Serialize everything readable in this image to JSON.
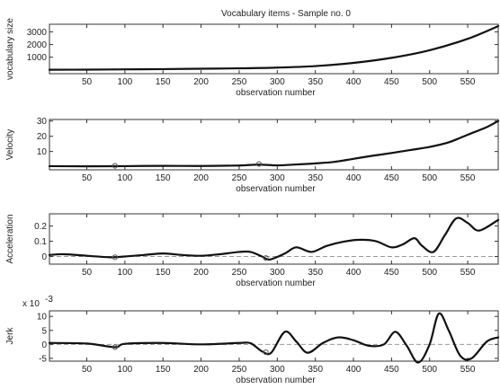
{
  "figure_title": "Vocabulary items - Sample no. 0",
  "colors": {
    "line": "#111111",
    "axes": "#333333",
    "zero_line": "#999999",
    "marker": "#555555"
  },
  "chart_data": [
    {
      "type": "line",
      "title": "Vocabulary items - Sample no. 0",
      "xlabel": "observation number",
      "ylabel": "vocabulary size",
      "xlim": [
        1,
        590
      ],
      "ylim": [
        -300,
        3600
      ],
      "xticks": [
        "50",
        "100",
        "150",
        "200",
        "250",
        "300",
        "350",
        "400",
        "450",
        "500",
        "550"
      ],
      "yticks": [
        "1000",
        "2000",
        "3000"
      ],
      "exponent": "",
      "zero_line": false,
      "grid": false,
      "series": [
        {
          "x": [
            1,
            50,
            100,
            150,
            200,
            250,
            300,
            350,
            400,
            450,
            500,
            550,
            590
          ],
          "y": [
            10,
            20,
            40,
            60,
            90,
            120,
            180,
            300,
            550,
            950,
            1550,
            2450,
            3450
          ]
        }
      ],
      "markers": []
    },
    {
      "type": "line",
      "title": "",
      "xlabel": "observation number",
      "ylabel": "Velocity",
      "xlim": [
        1,
        590
      ],
      "ylim": [
        -2,
        31
      ],
      "xticks": [
        "50",
        "100",
        "150",
        "200",
        "250",
        "300",
        "350",
        "400",
        "450",
        "500",
        "550"
      ],
      "yticks": [
        "10",
        "20",
        "30"
      ],
      "exponent": "",
      "zero_line": false,
      "grid": false,
      "series": [
        {
          "x": [
            1,
            50,
            100,
            150,
            200,
            250,
            275,
            300,
            325,
            350,
            375,
            400,
            425,
            450,
            475,
            500,
            525,
            550,
            575,
            590
          ],
          "y": [
            0.4,
            0.3,
            0.4,
            0.6,
            0.5,
            0.8,
            1.4,
            0.9,
            1.5,
            2.2,
            3.2,
            5.2,
            7.2,
            9.0,
            11.0,
            13.0,
            16.0,
            21.0,
            26.0,
            30.0
          ]
        }
      ],
      "markers": [
        {
          "x": 87,
          "y": 0.6
        },
        {
          "x": 276,
          "y": 1.8
        }
      ]
    },
    {
      "type": "line",
      "title": "",
      "xlabel": "observation number",
      "ylabel": "Acceleration",
      "xlim": [
        1,
        590
      ],
      "ylim": [
        -0.05,
        0.28
      ],
      "xticks": [
        "50",
        "100",
        "150",
        "200",
        "250",
        "300",
        "350",
        "400",
        "450",
        "500",
        "550"
      ],
      "yticks": [
        "0",
        "0.1",
        "0.2"
      ],
      "exponent": "",
      "zero_line": true,
      "grid": false,
      "series": [
        {
          "x": [
            1,
            20,
            50,
            80,
            100,
            125,
            150,
            175,
            200,
            225,
            250,
            265,
            280,
            290,
            310,
            325,
            345,
            365,
            390,
            410,
            430,
            450,
            465,
            480,
            490,
            505,
            520,
            535,
            550,
            565,
            590
          ],
          "y": [
            0.01,
            0.015,
            0.005,
            -0.005,
            0.0,
            0.01,
            0.02,
            0.01,
            0.005,
            0.015,
            0.03,
            0.03,
            0.0,
            -0.02,
            0.02,
            0.06,
            0.03,
            0.07,
            0.1,
            0.11,
            0.1,
            0.06,
            0.08,
            0.12,
            0.07,
            0.03,
            0.14,
            0.25,
            0.22,
            0.17,
            0.24
          ]
        }
      ],
      "markers": [
        {
          "x": 87,
          "y": -0.005
        },
        {
          "x": 285,
          "y": -0.01
        }
      ]
    },
    {
      "type": "line",
      "title": "",
      "xlabel": "observation number",
      "ylabel": "Jerk",
      "xlim": [
        1,
        590
      ],
      "ylim": [
        -6,
        12
      ],
      "xticks": [
        "50",
        "100",
        "150",
        "200",
        "250",
        "300",
        "350",
        "400",
        "450",
        "500",
        "550"
      ],
      "yticks": [
        "-5",
        "0",
        "5",
        "10"
      ],
      "exponent": "x 10",
      "exponent_power": "-3",
      "zero_line": true,
      "grid": false,
      "series": [
        {
          "x": [
            1,
            50,
            87,
            100,
            150,
            200,
            250,
            265,
            280,
            292,
            310,
            325,
            340,
            360,
            380,
            400,
            420,
            440,
            455,
            470,
            485,
            500,
            512,
            525,
            540,
            555,
            575,
            590
          ],
          "y": [
            0.5,
            0.3,
            -1.0,
            0.2,
            0.5,
            0.0,
            0.5,
            0.4,
            -2.5,
            -3.0,
            4.5,
            1.0,
            -3.0,
            0.5,
            2.5,
            1.5,
            -0.5,
            0.0,
            4.5,
            -0.5,
            -6.5,
            0.0,
            11.0,
            5.0,
            -4.0,
            -5.0,
            1.0,
            2.5
          ]
        }
      ],
      "markers": [
        {
          "x": 87,
          "y": -1.0
        },
        {
          "x": 285,
          "y": -2.8
        }
      ]
    }
  ]
}
